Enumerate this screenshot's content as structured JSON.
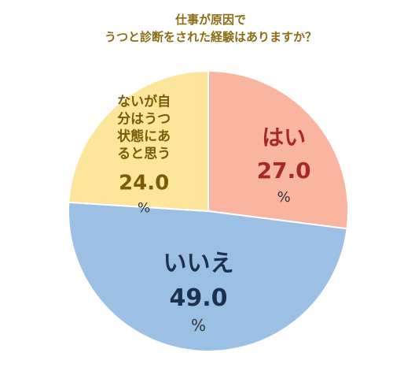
{
  "chart_data": {
    "type": "pie",
    "title_lines": [
      "仕事が原因で",
      "うつと診断をされた経験はありますか？"
    ],
    "unit": "%",
    "slices": [
      {
        "label_lines": [
          "はい"
        ],
        "value": 27.0,
        "value_text": "27.0",
        "fill": "#f9b5a0",
        "text_color": "#a52a22"
      },
      {
        "label_lines": [
          "いいえ"
        ],
        "value": 49.0,
        "value_text": "49.0",
        "fill": "#9cc0e4",
        "text_color": "#1e3050"
      },
      {
        "label_lines": [
          "ないが自",
          "分はうつ",
          "状態にあ",
          "ると思う"
        ],
        "value": 24.0,
        "value_text": "24.0",
        "fill": "#fde59b",
        "text_color": "#7a5c06"
      }
    ],
    "start": "top",
    "direction": "clockwise",
    "edge_color": "#ffffff"
  }
}
